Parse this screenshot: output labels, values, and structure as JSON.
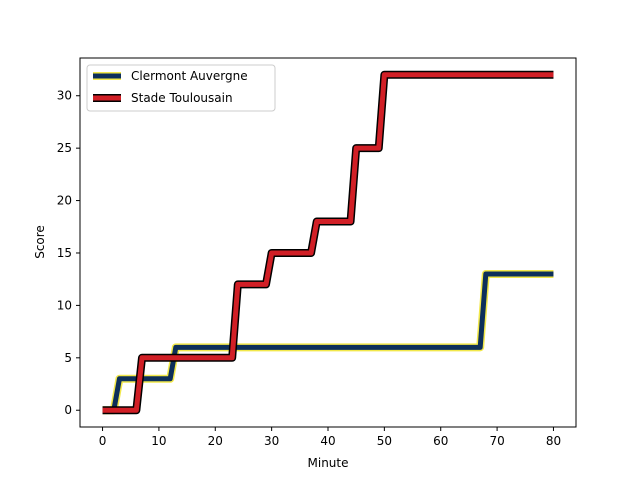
{
  "chart_data": {
    "type": "line",
    "step": true,
    "xlabel": "Minute",
    "ylabel": "Score",
    "xlim": [
      -4,
      84
    ],
    "ylim": [
      -1.6,
      33.6
    ],
    "xticks": [
      0,
      10,
      20,
      30,
      40,
      50,
      60,
      70,
      80
    ],
    "yticks": [
      0,
      5,
      10,
      15,
      20,
      25,
      30
    ],
    "grid": false,
    "legend_position": "top-left",
    "series": [
      {
        "name": "Clermont Auvergne",
        "color": "#0d2f5a",
        "outline": "#f2e84a",
        "x": [
          0,
          2,
          3,
          12,
          13,
          67,
          68,
          80
        ],
        "y": [
          0,
          0,
          3,
          3,
          6,
          6,
          13,
          13
        ]
      },
      {
        "name": "Stade Toulousain",
        "color": "#d11f26",
        "outline": "#000000",
        "x": [
          0,
          6,
          7,
          23,
          24,
          29,
          30,
          37,
          38,
          44,
          45,
          49,
          50,
          80
        ],
        "y": [
          0,
          0,
          5,
          5,
          12,
          12,
          15,
          15,
          18,
          18,
          25,
          25,
          32,
          32
        ]
      }
    ]
  }
}
